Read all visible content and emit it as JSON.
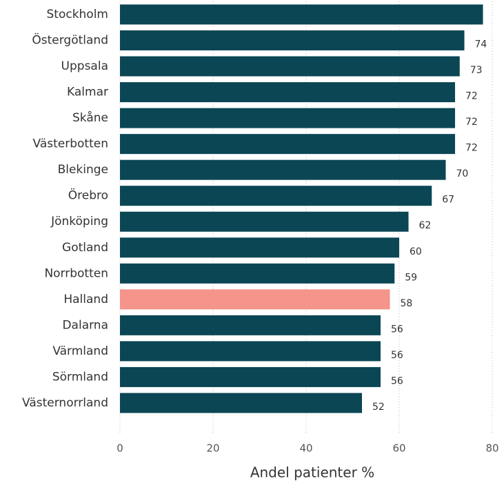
{
  "chart_data": {
    "type": "bar",
    "orientation": "horizontal",
    "x_label": "Andel patienter %",
    "categories": [
      "Stockholm",
      "Östergötland",
      "Uppsala",
      "Kalmar",
      "Skåne",
      "Västerbotten",
      "Blekinge",
      "Örebro",
      "Jönköping",
      "Gotland",
      "Norrbotten",
      "Halland",
      "Dalarna",
      "Värmland",
      "Sörmland",
      "Västernorrland"
    ],
    "values": [
      78,
      74,
      73,
      72,
      72,
      72,
      70,
      67,
      62,
      60,
      59,
      58,
      56,
      56,
      56,
      52
    ],
    "value_labels": [
      null,
      "74",
      "73",
      "72",
      "72",
      "72",
      "70",
      "67",
      "62",
      "60",
      "59",
      "58",
      "56",
      "56",
      "56",
      "52"
    ],
    "colors": [
      "#0b4654",
      "#0b4654",
      "#0b4654",
      "#0b4654",
      "#0b4654",
      "#0b4654",
      "#0b4654",
      "#0b4654",
      "#0b4654",
      "#0b4654",
      "#0b4654",
      "#f4948a",
      "#0b4654",
      "#0b4654",
      "#0b4654",
      "#0b4654"
    ],
    "xlim": [
      0,
      80
    ],
    "xticks": [
      0,
      20,
      40,
      60,
      80
    ],
    "grid": true
  }
}
